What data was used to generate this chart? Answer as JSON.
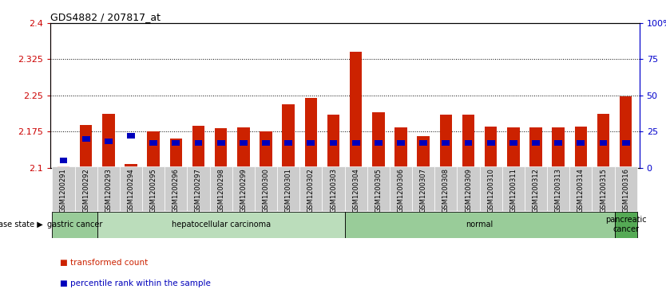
{
  "title": "GDS4882 / 207817_at",
  "samples": [
    "GSM1200291",
    "GSM1200292",
    "GSM1200293",
    "GSM1200294",
    "GSM1200295",
    "GSM1200296",
    "GSM1200297",
    "GSM1200298",
    "GSM1200299",
    "GSM1200300",
    "GSM1200301",
    "GSM1200302",
    "GSM1200303",
    "GSM1200304",
    "GSM1200305",
    "GSM1200306",
    "GSM1200307",
    "GSM1200308",
    "GSM1200309",
    "GSM1200310",
    "GSM1200311",
    "GSM1200312",
    "GSM1200313",
    "GSM1200314",
    "GSM1200315",
    "GSM1200316"
  ],
  "transformed_count": [
    2.103,
    2.188,
    2.212,
    2.107,
    2.175,
    2.16,
    2.187,
    2.182,
    2.183,
    2.175,
    2.232,
    2.244,
    2.21,
    2.34,
    2.215,
    2.183,
    2.165,
    2.21,
    2.21,
    2.186,
    2.183,
    2.184,
    2.184,
    2.186,
    2.212,
    2.248
  ],
  "percentile_rank": [
    5,
    20,
    18,
    22,
    17,
    17,
    17,
    17,
    17,
    17,
    17,
    17,
    17,
    17,
    17,
    17,
    17,
    17,
    17,
    17,
    17,
    17,
    17,
    17,
    17,
    17
  ],
  "disease_groups": [
    {
      "label": "gastric cancer",
      "start": 0,
      "end": 2,
      "color": "#99cc99"
    },
    {
      "label": "hepatocellular carcinoma",
      "start": 2,
      "end": 13,
      "color": "#bbddbb"
    },
    {
      "label": "normal",
      "start": 13,
      "end": 25,
      "color": "#99cc99"
    },
    {
      "label": "pancreatic\ncancer",
      "start": 25,
      "end": 26,
      "color": "#55aa55"
    }
  ],
  "bar_color": "#cc2200",
  "blue_color": "#0000bb",
  "ylim_left": [
    2.1,
    2.4
  ],
  "ylim_right": [
    0,
    100
  ],
  "yticks_left": [
    2.1,
    2.175,
    2.25,
    2.325,
    2.4
  ],
  "yticks_right": [
    0,
    25,
    50,
    75,
    100
  ],
  "ytick_labels_left": [
    "2.1",
    "2.175",
    "2.25",
    "2.325",
    "2.4"
  ],
  "ytick_labels_right": [
    "0",
    "25",
    "50",
    "75",
    "100%"
  ],
  "bar_width": 0.55,
  "blue_bar_width": 0.35,
  "disease_state_label": "disease state",
  "legend_items": [
    {
      "color": "#cc2200",
      "label": "transformed count"
    },
    {
      "color": "#0000bb",
      "label": "percentile rank within the sample"
    }
  ],
  "background_color": "#ffffff",
  "tick_label_color_left": "#cc0000",
  "tick_label_color_right": "#0000cc",
  "xtick_bg_color": "#cccccc"
}
